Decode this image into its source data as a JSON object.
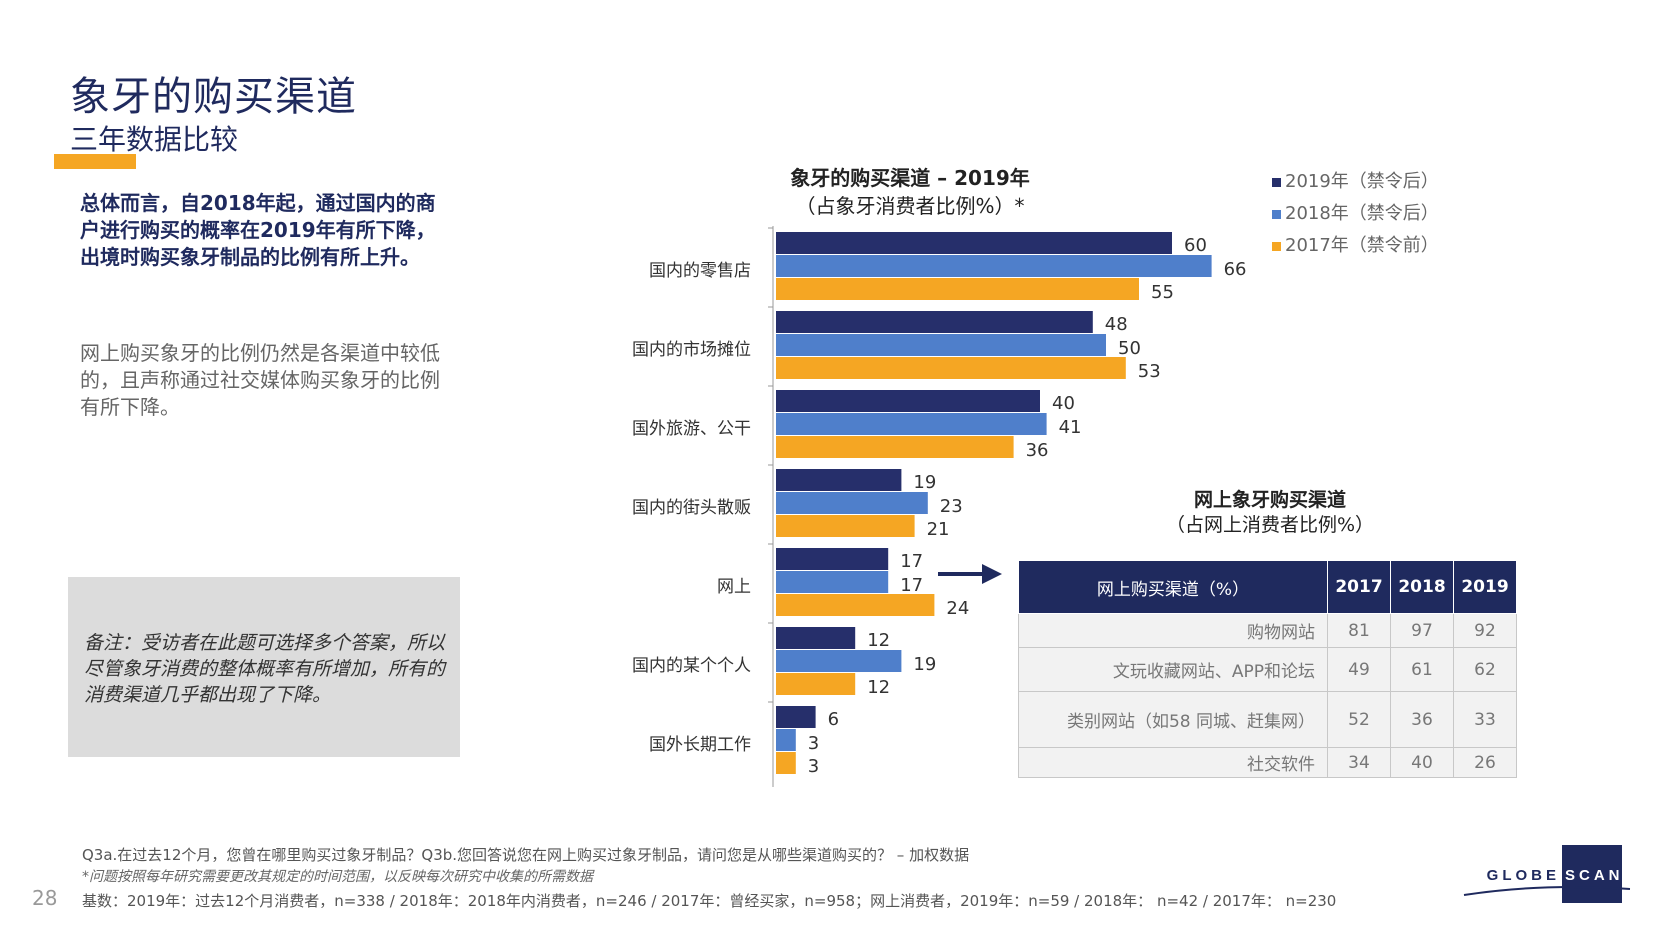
{
  "header": {
    "title": "象牙的购买渠道",
    "subtitle": "三年数据比较"
  },
  "summary": {
    "bold": "总体而言，自2018年起，通过国内的商户进行购买的概率在2019年有所下降，出境时购买象牙制品的比例有所上升。",
    "normal": "网上购买象牙的比例仍然是各渠道中较低的，且声称通过社交媒体购买象牙的比例有所下降。"
  },
  "note": "备注：受访者在此题可选择多个答案，所以尽管象牙消费的整体概率有所增加，所有的消费渠道几乎都出现了下降。",
  "colors": {
    "s2019": "#262f6b",
    "s2018": "#4f7fcb",
    "s2017": "#f5a623"
  },
  "chart_data": [
    {
      "type": "bar",
      "orientation": "horizontal",
      "title": "象牙的购买渠道 – 2019年",
      "subtitle": "（占象牙消费者比例%）*",
      "categories": [
        "国内的零售店",
        "国内的市场摊位",
        "国外旅游、公干",
        "国内的街头散贩",
        "网上",
        "国内的某个个人",
        "国外长期工作"
      ],
      "series": [
        {
          "name": "2019年（禁令后）",
          "values": [
            60,
            48,
            40,
            19,
            17,
            12,
            6
          ]
        },
        {
          "name": "2018年（禁令后）",
          "values": [
            66,
            50,
            41,
            23,
            17,
            19,
            3
          ]
        },
        {
          "name": "2017年（禁令前）",
          "values": [
            55,
            53,
            36,
            21,
            24,
            12,
            3
          ]
        }
      ],
      "xlim": [
        0,
        70
      ],
      "legend_position": "top-right"
    },
    {
      "type": "table",
      "title": "网上象牙购买渠道",
      "subtitle": "（占网上消费者比例%）",
      "header": [
        "网上购买渠道（%）",
        "2017",
        "2018",
        "2019"
      ],
      "rows": [
        [
          "购物网站",
          "81",
          "97",
          "92"
        ],
        [
          "文玩收藏网站、APP和论坛",
          "49",
          "61",
          "62"
        ],
        [
          "类别网站（如58 同城、赶集网）",
          "52",
          "36",
          "33"
        ],
        [
          "社交软件",
          "34",
          "40",
          "26"
        ]
      ]
    }
  ],
  "footer": {
    "q": "Q3a.在过去12个月，您曾在哪里购买过象牙制品？Q3b.您回答说您在网上购买过象牙制品，请问您是从哪些渠道购买的？ – 加权数据",
    "note": "*问题按照每年研究需要更改其规定的时间范围，以反映每次研究中收集的所需数据",
    "base": "基数：2019年：过去12个月消费者，n=338 / 2018年：2018年内消费者，n=246 / 2017年：曾经买家，n=958；网上消费者，2019年：n=59 / 2018年： n=42 / 2017年： n=230",
    "page": "28"
  },
  "logo": {
    "left": "GLOBE",
    "right": "SCAN"
  }
}
